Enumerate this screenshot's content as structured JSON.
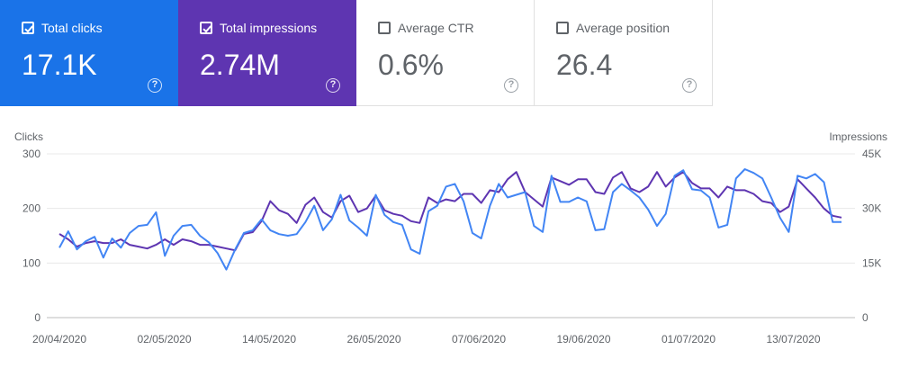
{
  "metric_cards": [
    {
      "label": "Total clicks",
      "value": "17.1K",
      "checked": true,
      "color": "#1a73e8",
      "help_glyph": "?"
    },
    {
      "label": "Total impressions",
      "value": "2.74M",
      "checked": true,
      "color": "#5e35b1",
      "help_glyph": "?"
    },
    {
      "label": "Average CTR",
      "value": "0.6%",
      "checked": false,
      "color": "#ffffff",
      "help_glyph": "?"
    },
    {
      "label": "Average position",
      "value": "26.4",
      "checked": false,
      "color": "#ffffff",
      "help_glyph": "?"
    }
  ],
  "icons": {
    "checkbox": "checkbox-icon",
    "help": "help-circle-icon"
  },
  "chart_data": {
    "type": "line",
    "left_axis_label": "Clicks",
    "right_axis_label": "Impressions",
    "left_ylim": [
      0,
      300
    ],
    "right_ylim": [
      0,
      45000
    ],
    "left_ticks": [
      "0",
      "100",
      "200",
      "300"
    ],
    "right_ticks": [
      "0",
      "15K",
      "30K",
      "45K"
    ],
    "x_tick_labels": [
      "20/04/2020",
      "02/05/2020",
      "14/05/2020",
      "26/05/2020",
      "07/06/2020",
      "19/06/2020",
      "01/07/2020",
      "13/07/2020"
    ],
    "grid": true,
    "x_start": "2020-04-20",
    "series": [
      {
        "name": "Clicks",
        "axis": "left",
        "color": "#4285f4",
        "values": [
          128,
          158,
          125,
          140,
          148,
          110,
          145,
          128,
          155,
          168,
          170,
          193,
          113,
          150,
          168,
          170,
          150,
          138,
          118,
          88,
          125,
          155,
          160,
          180,
          160,
          153,
          150,
          153,
          175,
          205,
          160,
          180,
          225,
          178,
          165,
          150,
          225,
          188,
          175,
          170,
          125,
          117,
          195,
          205,
          240,
          245,
          213,
          155,
          145,
          205,
          245,
          220,
          225,
          230,
          168,
          157,
          260,
          212,
          212,
          220,
          213,
          160,
          162,
          230,
          245,
          233,
          220,
          198,
          168,
          190,
          260,
          270,
          235,
          233,
          220,
          165,
          170,
          255,
          272,
          265,
          255,
          220,
          183,
          157,
          260,
          255,
          263,
          248,
          175,
          175
        ]
      },
      {
        "name": "Impressions",
        "axis": "right",
        "color": "#5e35b1",
        "values": [
          23000,
          21500,
          19500,
          20500,
          21000,
          20500,
          20500,
          21500,
          20000,
          19500,
          19000,
          20000,
          21500,
          20000,
          21500,
          21000,
          20000,
          20000,
          19500,
          19000,
          18500,
          23000,
          23500,
          26500,
          32000,
          29500,
          28500,
          26000,
          31000,
          33000,
          29000,
          27500,
          32000,
          33500,
          29000,
          30000,
          33500,
          29500,
          28500,
          28000,
          26500,
          26000,
          33000,
          31500,
          32500,
          32000,
          34000,
          34000,
          31500,
          35000,
          34500,
          38000,
          40000,
          34500,
          32500,
          30500,
          38500,
          37500,
          36500,
          38000,
          38000,
          34500,
          34000,
          38500,
          40000,
          35500,
          34500,
          36000,
          40000,
          36000,
          38500,
          40000,
          37000,
          35500,
          35500,
          33000,
          36000,
          35000,
          35000,
          34000,
          32000,
          31500,
          29000,
          30500,
          38000,
          35500,
          33000,
          30000,
          28000,
          27500
        ]
      }
    ]
  }
}
